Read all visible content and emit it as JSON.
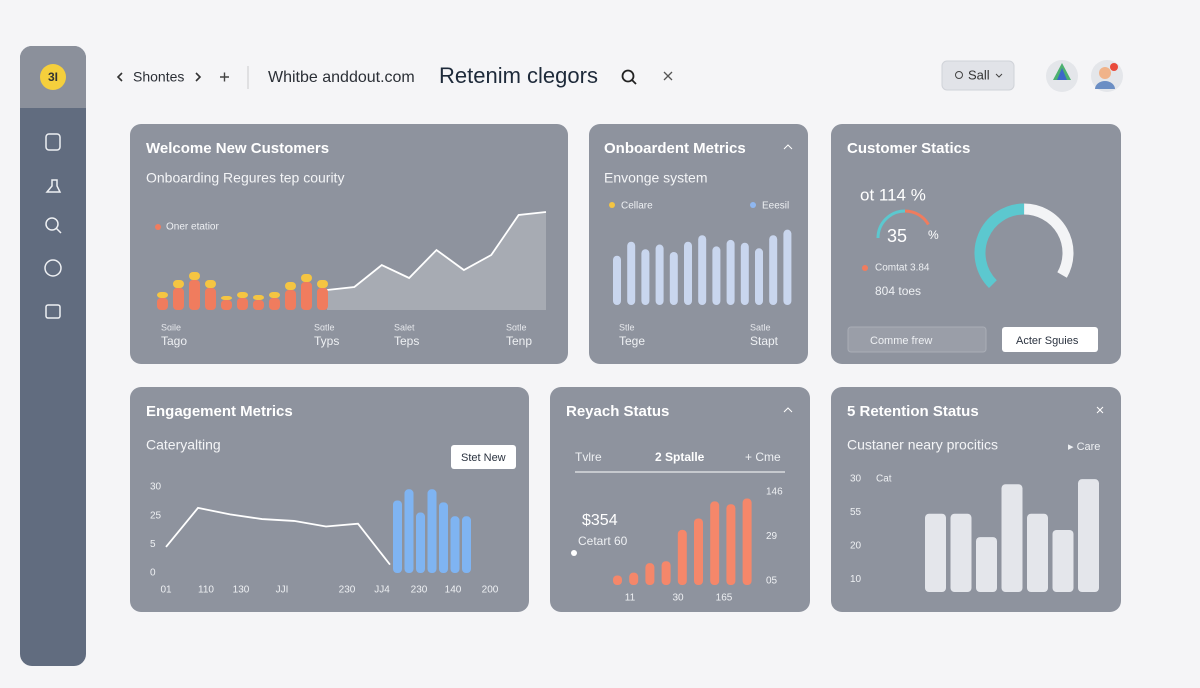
{
  "sidebar": {
    "logo": "3I"
  },
  "topbar": {
    "back": "Shontes",
    "url": "Whitbe anddout.com",
    "title": "Retenim clegors",
    "button": "Sall"
  },
  "panels": [
    {
      "title": "Welcome New Customers",
      "subtitle": "Onboarding Regures tep courity",
      "legend": "Oner etatior",
      "x_labels": [
        [
          "Sɑile",
          "Tago"
        ],
        [
          "Sɑtle",
          "Typs"
        ],
        [
          "Salet",
          "Teps"
        ],
        [
          "Sɑtle",
          "Tenp"
        ]
      ],
      "chart": {
        "type": "stacked-bar",
        "ylim": [
          0,
          100
        ],
        "series": [
          {
            "color": "#f07c5e",
            "values": [
              12,
              22,
              30,
              22,
              10,
              12,
              10,
              12,
              20,
              28,
              22
            ]
          },
          {
            "color": "#f5c542",
            "values": [
              6,
              8,
              8,
              8,
              4,
              6,
              5,
              6,
              8,
              8,
              8
            ]
          }
        ],
        "line": {
          "color": "#ffffff",
          "values": [
            20,
            23,
            45,
            32,
            60,
            40,
            55,
            95,
            98
          ]
        }
      }
    },
    {
      "title": "Onboardent Metrics",
      "subtitle": "Envonge system",
      "legend": [
        {
          "name": "Cellare",
          "color": "#f5c542"
        },
        {
          "name": "Eeesil",
          "color": "#8fb7f0"
        }
      ],
      "x_labels": [
        [
          "Stle",
          "Tege"
        ],
        [
          "Satle",
          "Stapt"
        ]
      ],
      "chart": {
        "type": "bar",
        "ylim": [
          0,
          100
        ],
        "color": "#c9d6ee",
        "values": [
          53,
          68,
          60,
          65,
          57,
          68,
          75,
          63,
          70,
          67,
          61,
          75,
          81
        ]
      }
    },
    {
      "title": "Customer Statics",
      "stat": "ot 114 %",
      "gauge_value": "35",
      "gauge_unit": "%",
      "note": "Comtat 3.84",
      "count": "804 toes",
      "buttons": [
        "Comme frew",
        "Acter Sguies"
      ],
      "mini_ring": {
        "values": [
          60,
          40
        ],
        "colors": [
          "#5cc8cf",
          "#f07c5e"
        ]
      },
      "ring": {
        "values": [
          53,
          47
        ],
        "colors": [
          "#5cc8cf",
          "#f3f4f6"
        ]
      }
    },
    {
      "title": "Engagement Metrics",
      "subtitle": "Cateryalting",
      "button": "Stet New",
      "y_labels": [
        "30",
        "25",
        "5",
        "0"
      ],
      "x_labels": [
        "01",
        "110",
        "130",
        "JJI",
        "230",
        "JJ4",
        "230",
        "140",
        "200"
      ],
      "chart": {
        "type": "line-bar",
        "ylim": [
          0,
          100
        ],
        "line": {
          "color": "#ffffff",
          "values": [
            28,
            70,
            63,
            58,
            56,
            50,
            53,
            9
          ]
        },
        "bars": {
          "color": "#7fb4f2",
          "values": [
            78,
            90,
            65,
            90,
            76,
            61,
            61
          ]
        }
      }
    },
    {
      "title": "Reyach Status",
      "header": [
        "Tvlre",
        "2 Sptalle",
        "+ Cme"
      ],
      "stat": "$354",
      "note": "Cetart 60",
      "y_labels": [
        "146",
        "29",
        "05"
      ],
      "x_labels": [
        "11",
        "30",
        "165"
      ],
      "chart": {
        "type": "bar",
        "ylim": [
          0,
          100
        ],
        "color": "#f5876a",
        "values": [
          10,
          13,
          23,
          25,
          58,
          70,
          88,
          85,
          91
        ]
      }
    },
    {
      "title": "5 Retention Status",
      "subtitle": "Custaner neary procitics",
      "link": "▸ Care",
      "y_unit": "Cat",
      "y_labels": [
        "30",
        "55",
        "20",
        "10"
      ],
      "chart": {
        "type": "bar",
        "ylim": [
          0,
          120
        ],
        "color": "#e4e6eb",
        "values": [
          77,
          77,
          54,
          106,
          77,
          61,
          111
        ]
      }
    }
  ]
}
